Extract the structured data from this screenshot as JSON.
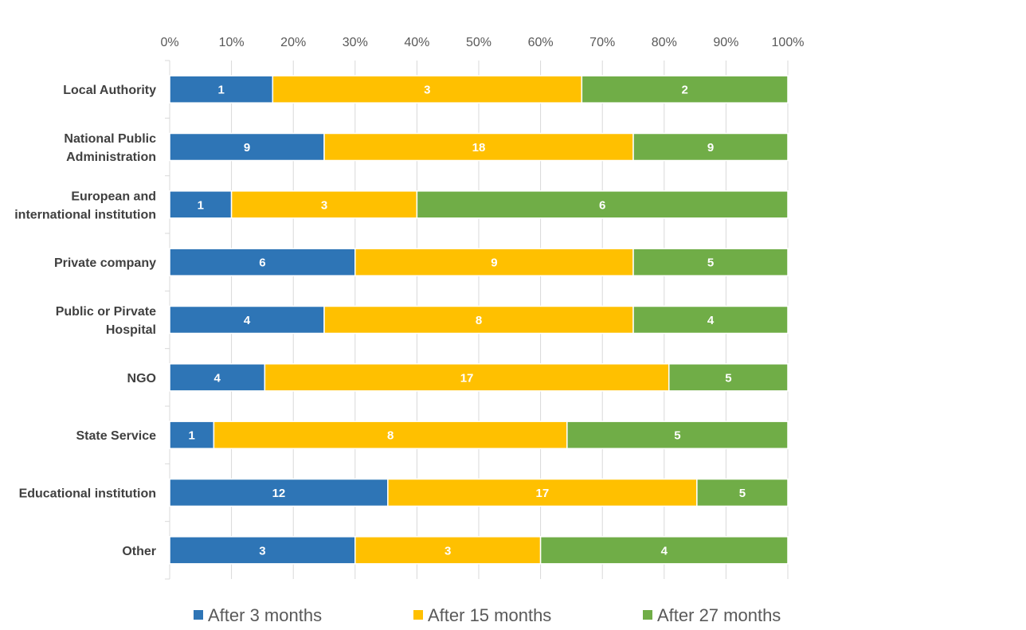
{
  "chart_data": {
    "type": "bar",
    "orientation": "horizontal",
    "stacking": "percent",
    "title": "",
    "xlabel": "",
    "ylabel": "",
    "xlim": [
      0,
      100
    ],
    "x_ticks": [
      "0%",
      "10%",
      "20%",
      "30%",
      "40%",
      "50%",
      "60%",
      "70%",
      "80%",
      "90%",
      "100%"
    ],
    "x_axis_position": "top",
    "grid": true,
    "legend_position": "bottom",
    "categories": [
      [
        "Local Authority"
      ],
      [
        "National Public",
        "Administration"
      ],
      [
        "European and",
        "international institution"
      ],
      [
        "Private company"
      ],
      [
        "Public or Pirvate",
        "Hospital"
      ],
      [
        "NGO"
      ],
      [
        "State Service"
      ],
      [
        "Educational institution"
      ],
      [
        "Other"
      ]
    ],
    "series": [
      {
        "name": "After 3 months",
        "color": "#2E75B6",
        "values": [
          1,
          9,
          1,
          6,
          4,
          4,
          1,
          12,
          3
        ]
      },
      {
        "name": "After 15 months",
        "color": "#FFC000",
        "values": [
          3,
          18,
          3,
          9,
          8,
          17,
          8,
          17,
          3
        ]
      },
      {
        "name": "After 27 months",
        "color": "#70AD47",
        "values": [
          2,
          9,
          6,
          5,
          4,
          5,
          5,
          5,
          4
        ]
      }
    ]
  }
}
